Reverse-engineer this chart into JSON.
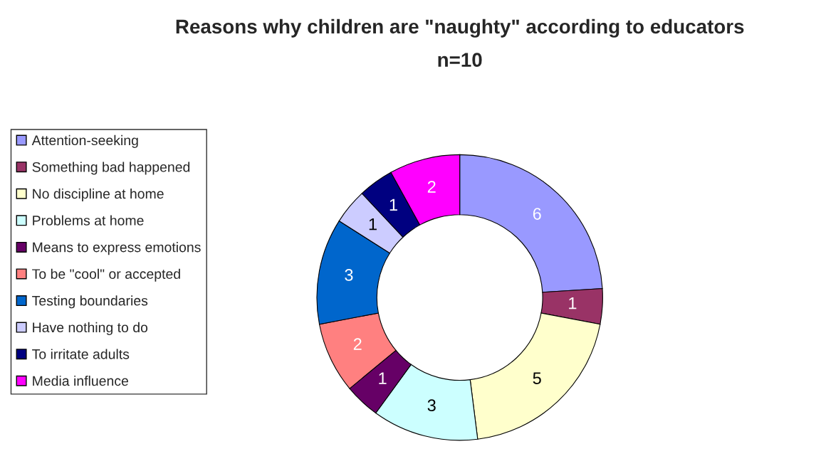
{
  "chart_data": {
    "type": "donut",
    "title": "Reasons why children are \"naughty\" according to educators",
    "subtitle": "n=10",
    "categories": [
      "Attention-seeking",
      "Something bad happened",
      "No discipline at home",
      "Problems at home",
      "Means to express emotions",
      "To be \"cool\" or accepted",
      "Testing boundaries",
      "Have nothing to do",
      "To irritate adults",
      "Media influence"
    ],
    "values": [
      6,
      1,
      5,
      3,
      1,
      2,
      3,
      1,
      1,
      2
    ],
    "colors": [
      "#9999ff",
      "#993366",
      "#ffffcc",
      "#ccffff",
      "#660066",
      "#ff8080",
      "#0066cc",
      "#ccccff",
      "#000080",
      "#ff00ff"
    ],
    "data_labels": true,
    "legend": "left"
  }
}
